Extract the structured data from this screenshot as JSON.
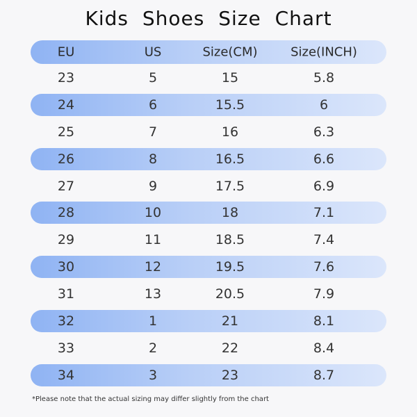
{
  "title": "Kids Shoes Size Chart",
  "table": {
    "headers": [
      "EU",
      "US",
      "Size(CM)",
      "Size(INCH)"
    ],
    "rows": [
      [
        "23",
        "5",
        "15",
        "5.8"
      ],
      [
        "24",
        "6",
        "15.5",
        "6"
      ],
      [
        "25",
        "7",
        "16",
        "6.3"
      ],
      [
        "26",
        "8",
        "16.5",
        "6.6"
      ],
      [
        "27",
        "9",
        "17.5",
        "6.9"
      ],
      [
        "28",
        "10",
        "18",
        "7.1"
      ],
      [
        "29",
        "11",
        "18.5",
        "7.4"
      ],
      [
        "30",
        "12",
        "19.5",
        "7.6"
      ],
      [
        "31",
        "13",
        "20.5",
        "7.9"
      ],
      [
        "32",
        "1",
        "21",
        "8.1"
      ],
      [
        "33",
        "2",
        "22",
        "8.4"
      ],
      [
        "34",
        "3",
        "23",
        "8.7"
      ]
    ]
  },
  "footnote": "*Please note that the actual sizing may differ slightly from the chart",
  "colors": {
    "stripe_start": "#8fb3f3",
    "stripe_end": "#dbe6fb",
    "background": "#f7f7f9"
  }
}
